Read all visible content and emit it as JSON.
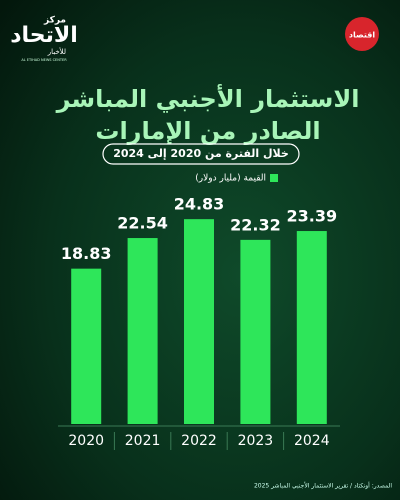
{
  "logo": {
    "top": "مركز",
    "main": "الاتحاد",
    "sub": "للأخبار",
    "english": "AL ETIHAD NEWS CENTER"
  },
  "badge": "اقتصاد",
  "source": "المصدر: أونكتاد / تقرير الاستثمار الأجنبي المباشر 2025",
  "chart_data": {
    "type": "bar",
    "title": [
      "الاستثمار الأجنبي المباشر",
      "الصادر من الإمارات"
    ],
    "subtitle": "خلال الفترة من 2020 إلى 2024",
    "categories": [
      "2020",
      "2021",
      "2022",
      "2023",
      "2024"
    ],
    "series": [
      {
        "name": "القيمة (مليار دولار)",
        "color": "#2ee65a",
        "values": [
          18.83,
          22.54,
          24.83,
          22.32,
          23.39
        ]
      }
    ]
  }
}
